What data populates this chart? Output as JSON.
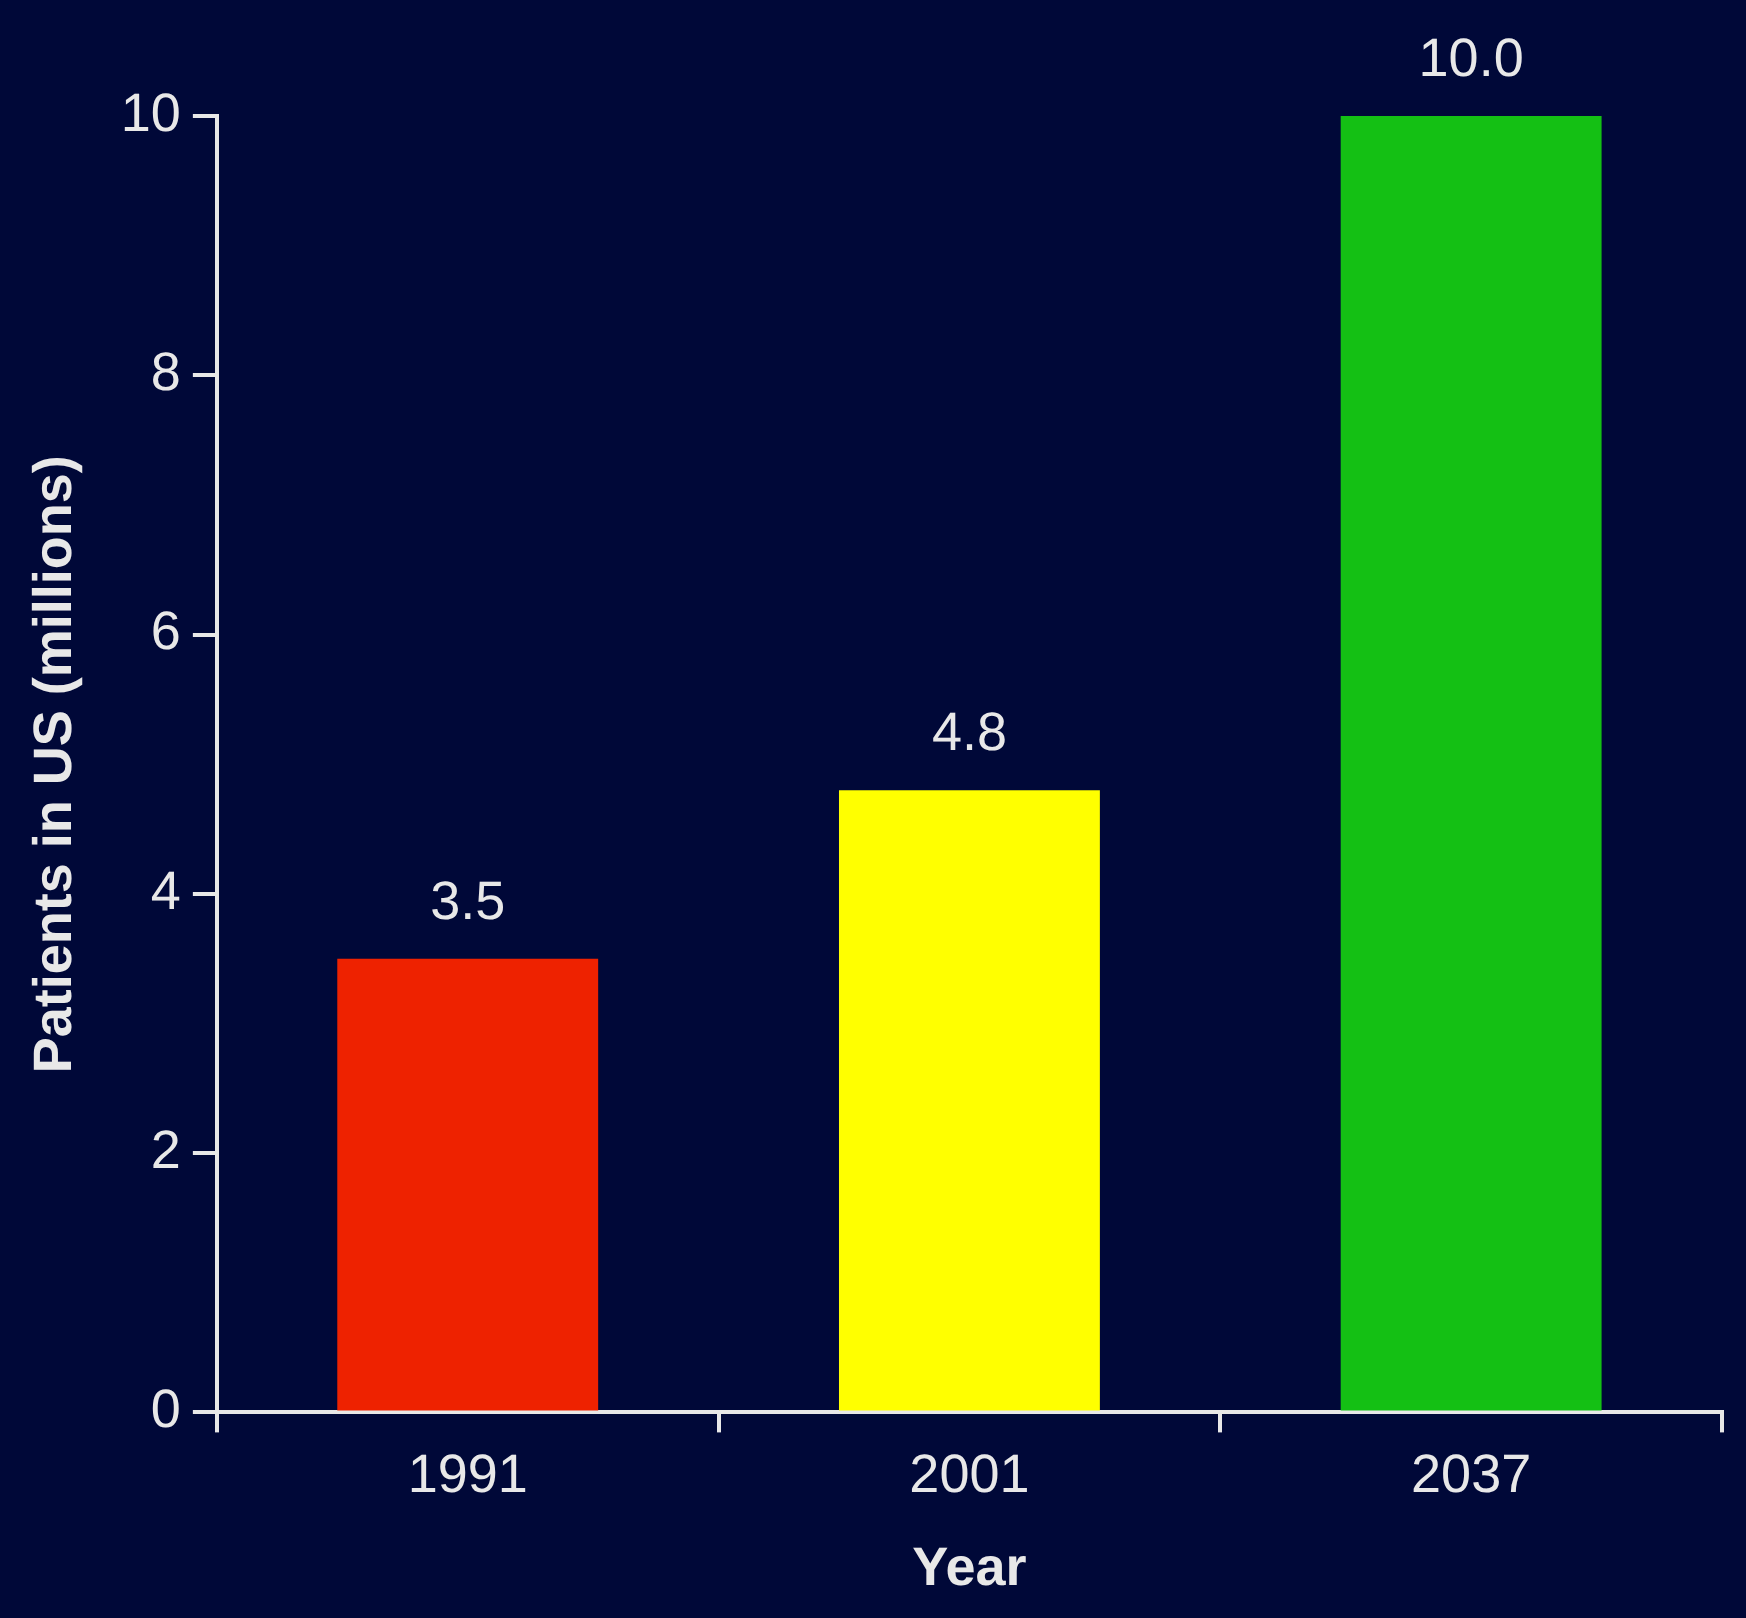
{
  "chart_data": {
    "type": "bar",
    "xlabel": "Year",
    "ylabel": "Patients in US (millions)",
    "categories": [
      "1991",
      "2001",
      "2037"
    ],
    "values": [
      3.5,
      4.8,
      10.0
    ],
    "value_labels": [
      "3.5",
      "4.8",
      "10.0"
    ],
    "colors": [
      "#ee2200",
      "#ffff00",
      "#14c014"
    ],
    "ylim": [
      0,
      10
    ],
    "yticks": [
      0,
      2,
      4,
      6,
      8,
      10
    ],
    "grid": false,
    "legend": false
  }
}
